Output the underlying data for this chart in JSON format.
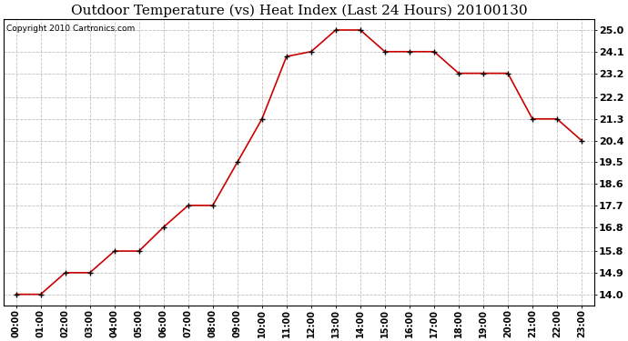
{
  "title": "Outdoor Temperature (vs) Heat Index (Last 24 Hours) 20100130",
  "copyright_text": "Copyright 2010 Cartronics.com",
  "x_labels": [
    "00:00",
    "01:00",
    "02:00",
    "03:00",
    "04:00",
    "05:00",
    "06:00",
    "07:00",
    "08:00",
    "09:00",
    "10:00",
    "11:00",
    "12:00",
    "13:00",
    "14:00",
    "15:00",
    "16:00",
    "17:00",
    "18:00",
    "19:00",
    "20:00",
    "21:00",
    "22:00",
    "23:00"
  ],
  "y_values": [
    14.0,
    14.0,
    14.9,
    14.9,
    15.8,
    15.8,
    16.8,
    17.7,
    17.7,
    19.5,
    21.3,
    23.9,
    24.1,
    25.0,
    25.0,
    24.1,
    24.1,
    24.1,
    23.2,
    23.2,
    23.2,
    21.3,
    21.3,
    20.4
  ],
  "y_ticks": [
    14.0,
    14.9,
    15.8,
    16.8,
    17.7,
    18.6,
    19.5,
    20.4,
    21.3,
    22.2,
    23.2,
    24.1,
    25.0
  ],
  "line_color": "#cc0000",
  "marker": "+",
  "marker_color": "#000000",
  "grid_color": "#c0c0c0",
  "background_color": "#ffffff",
  "title_fontsize": 11,
  "copyright_fontsize": 6.5,
  "tick_fontsize": 7,
  "ytick_fontsize": 8
}
